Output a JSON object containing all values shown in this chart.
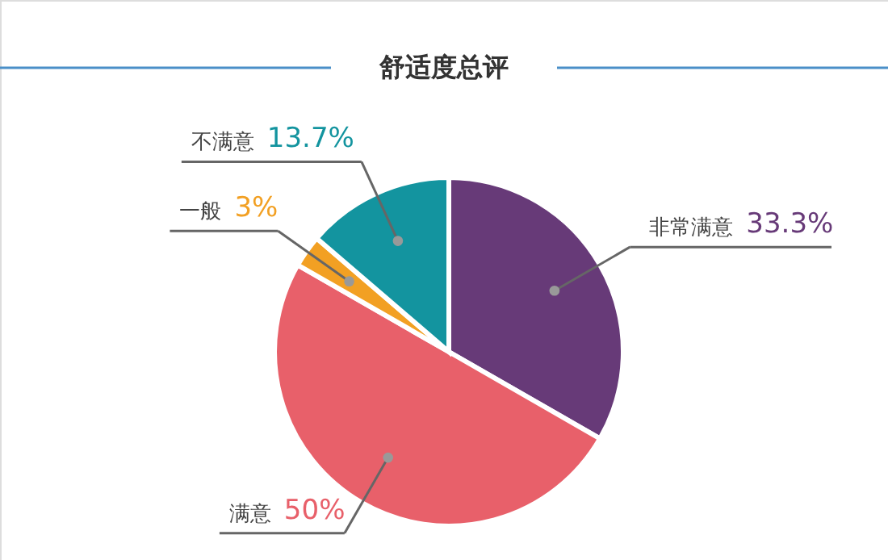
{
  "chart_data": {
    "type": "pie",
    "title": "舒适度总评",
    "categories": [
      "非常满意",
      "满意",
      "一般",
      "不满意"
    ],
    "values": [
      33.3,
      50,
      3,
      13.7
    ],
    "value_labels": [
      "33.3%",
      "50%",
      "3%",
      "13.7%"
    ],
    "colors": [
      "#673a78",
      "#e8606a",
      "#f2a023",
      "#13949f"
    ]
  }
}
